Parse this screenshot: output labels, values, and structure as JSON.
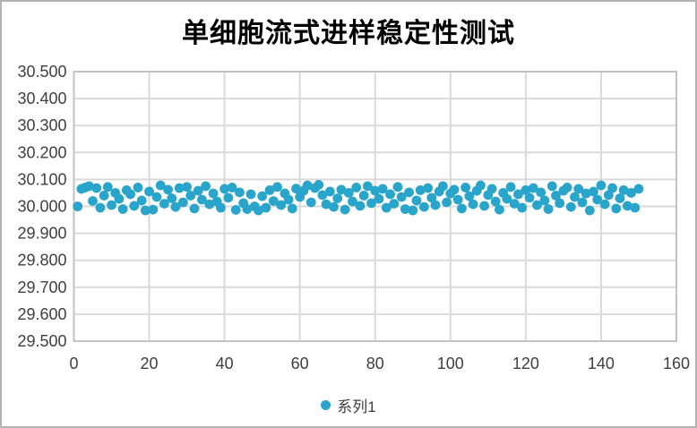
{
  "chart_data": {
    "type": "scatter",
    "title": "单细胞流式进样稳定性测试",
    "xlabel": "",
    "ylabel": "",
    "xlim": [
      0,
      160
    ],
    "ylim": [
      29.5,
      30.5
    ],
    "x_ticks": [
      0,
      20,
      40,
      60,
      80,
      100,
      120,
      140,
      160
    ],
    "y_ticks": [
      29.5,
      29.6,
      29.7,
      29.8,
      29.9,
      30.0,
      30.1,
      30.2,
      30.3,
      30.4,
      30.5
    ],
    "y_tick_decimals": 3,
    "grid": true,
    "legend_position": "bottom",
    "colors": {
      "marker": "#29a5cb",
      "grid": "#d9d9d9",
      "plot_border": "#c3c3c3",
      "axis_text": "#3f3f3f"
    },
    "series": [
      {
        "name": "系列1",
        "x_start": 1,
        "x_step": 1,
        "y": [
          30.0,
          30.065,
          30.07,
          30.075,
          30.02,
          30.068,
          29.995,
          30.04,
          30.072,
          30.005,
          30.05,
          30.028,
          29.99,
          30.06,
          30.045,
          30.002,
          30.07,
          30.022,
          29.985,
          30.055,
          29.988,
          30.035,
          30.078,
          30.01,
          30.062,
          30.03,
          29.998,
          30.068,
          30.015,
          30.072,
          30.04,
          29.992,
          30.058,
          30.025,
          30.075,
          30.008,
          30.048,
          30.018,
          29.995,
          30.065,
          30.032,
          30.07,
          29.987,
          30.052,
          30.012,
          29.99,
          30.045,
          30.0,
          29.985,
          30.038,
          29.995,
          30.06,
          30.02,
          30.072,
          30.005,
          30.048,
          30.025,
          29.992,
          30.066,
          30.035,
          30.058,
          30.078,
          30.015,
          30.068,
          30.08,
          30.042,
          30.008,
          30.055,
          29.998,
          30.03,
          30.062,
          29.988,
          30.05,
          30.018,
          30.07,
          30.002,
          30.04,
          30.075,
          30.012,
          30.058,
          30.028,
          30.065,
          29.995,
          30.045,
          30.01,
          30.072,
          30.035,
          29.99,
          30.052,
          29.985,
          30.022,
          30.06,
          29.998,
          30.068,
          30.032,
          30.005,
          30.055,
          30.075,
          30.015,
          30.048,
          30.062,
          30.025,
          29.992,
          30.07,
          30.038,
          30.008,
          30.058,
          30.078,
          30.002,
          30.042,
          30.065,
          30.018,
          29.988,
          30.05,
          30.028,
          30.072,
          30.01,
          30.045,
          29.995,
          30.06,
          30.032,
          30.068,
          30.005,
          30.052,
          30.022,
          29.99,
          30.075,
          30.04,
          30.012,
          30.058,
          30.07,
          29.998,
          30.035,
          30.065,
          30.015,
          30.048,
          29.985,
          30.055,
          30.025,
          30.078,
          30.008,
          30.042,
          30.068,
          29.992,
          30.03,
          30.06,
          30.002,
          30.05,
          29.995,
          30.065
        ]
      }
    ]
  }
}
